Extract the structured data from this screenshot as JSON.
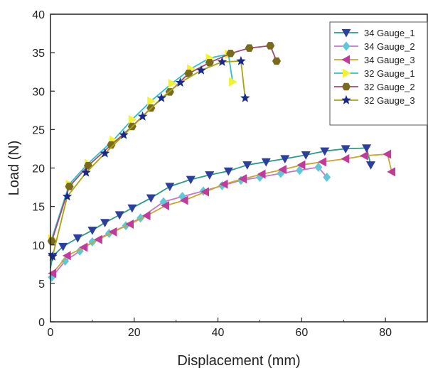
{
  "chart_data": {
    "type": "line",
    "title": "",
    "xlabel": "Displacement (mm)",
    "ylabel": "Load (N)",
    "xlim": [
      0,
      90
    ],
    "ylim": [
      0,
      40
    ],
    "xticks": [
      0,
      20,
      40,
      60,
      80
    ],
    "yticks": [
      0,
      5,
      10,
      15,
      20,
      25,
      30,
      35,
      40
    ],
    "grid": false,
    "legend_position": "top-right",
    "series": [
      {
        "name": "34 Gauge_1",
        "color": "#2e9a84",
        "marker_color": "#2c3e9e",
        "marker": "triangle-down",
        "x": [
          0,
          0.5,
          3,
          6.5,
          10,
          13,
          16.5,
          19.5,
          24,
          28.5,
          33.5,
          38,
          42.5,
          47,
          51.5,
          56,
          61,
          65.5,
          70.5,
          75.5,
          76.5
        ],
        "y": [
          7,
          8.5,
          9.8,
          10.9,
          11.9,
          12.9,
          13.9,
          14.8,
          16.1,
          17.6,
          18.5,
          19.1,
          19.6,
          20.4,
          20.8,
          21.2,
          21.7,
          22.2,
          22.5,
          22.6,
          20.4
        ]
      },
      {
        "name": "34 Gauge_2",
        "color": "#c875d1",
        "marker_color": "#5ec8d8",
        "marker": "diamond",
        "x": [
          0,
          0.3,
          3.5,
          7,
          10,
          14,
          18,
          21.5,
          27,
          31.5,
          36.5,
          41,
          45.5,
          50,
          55,
          59.5,
          64,
          66
        ],
        "y": [
          5.5,
          5.8,
          7.9,
          9.2,
          10.4,
          11.5,
          12.5,
          13.5,
          15.6,
          16.3,
          17,
          17.7,
          18.4,
          18.8,
          19.3,
          19.7,
          20.1,
          18.8
        ]
      },
      {
        "name": "34 Gauge_3",
        "color": "#c8a72a",
        "marker_color": "#c23a9a",
        "marker": "triangle-left",
        "x": [
          0,
          0.5,
          4,
          8,
          11.5,
          15,
          19,
          23,
          27.5,
          32,
          37,
          41.5,
          46,
          50.5,
          55.5,
          60,
          65,
          70.5,
          75,
          80.5,
          81.5
        ],
        "y": [
          6,
          6.3,
          8.6,
          9.7,
          10.7,
          11.7,
          12.7,
          13.8,
          15.1,
          15.8,
          16.9,
          17.9,
          18.6,
          19.2,
          19.8,
          20.4,
          20.8,
          21.2,
          21.6,
          21.8,
          19.5
        ]
      },
      {
        "name": "32 Gauge_1",
        "color": "#2fbfcf",
        "marker_color": "#f2f233",
        "marker": "triangle-right",
        "x": [
          0,
          0.3,
          4.5,
          9,
          15,
          19.5,
          24,
          29,
          33.5,
          38,
          42.5,
          43.5
        ],
        "y": [
          10.5,
          10.8,
          17.9,
          20.6,
          23.6,
          26.3,
          28.7,
          31,
          32.9,
          34.3,
          34.8,
          31.2
        ]
      },
      {
        "name": "32 Gauge_2",
        "color": "#a34a6c",
        "marker_color": "#7a6a1e",
        "marker": "hexagon",
        "x": [
          0,
          0.3,
          4.5,
          9,
          14.5,
          19.5,
          24,
          28.5,
          33,
          38,
          43,
          47.5,
          52.5,
          54
        ],
        "y": [
          10,
          10.5,
          17.6,
          20.3,
          23,
          25.4,
          27.8,
          29.9,
          32.3,
          33.7,
          34.9,
          35.6,
          35.9,
          33.9
        ]
      },
      {
        "name": "32 Gauge_3",
        "color": "#a5a514",
        "marker_color": "#1a2a8a",
        "marker": "star",
        "x": [
          0,
          0.5,
          4,
          8.5,
          13,
          17.5,
          22,
          26.5,
          31,
          36,
          41,
          45.5,
          46.5
        ],
        "y": [
          8,
          8.5,
          16.3,
          19.4,
          21.9,
          24.3,
          26.7,
          29.1,
          31.1,
          32.7,
          33.8,
          33.9,
          29.1
        ]
      }
    ]
  }
}
